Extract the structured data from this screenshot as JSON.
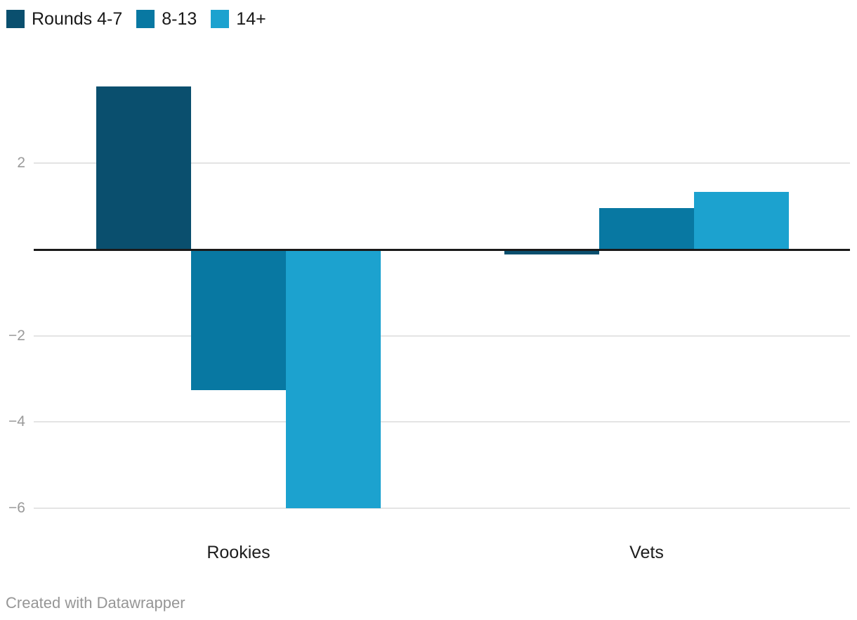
{
  "chart_data": {
    "type": "bar",
    "categories": [
      "Rookies",
      "Vets"
    ],
    "series": [
      {
        "name": "Rounds 4-7",
        "color": "#0a4f6e",
        "values": [
          3.78,
          -0.11
        ]
      },
      {
        "name": "8-13",
        "color": "#0878a2",
        "values": [
          -3.27,
          0.97
        ]
      },
      {
        "name": "14+",
        "color": "#1ca2cf",
        "values": [
          -6.0,
          1.34
        ]
      }
    ],
    "title": "",
    "xlabel": "",
    "ylabel": "",
    "ylim": [
      -6.6,
      4.0
    ],
    "yticks": [
      2,
      -2,
      -4,
      -6
    ],
    "baseline": 0,
    "grid": true,
    "legend_position": "top-left",
    "grouped": true
  },
  "legend": {
    "items": [
      {
        "label": "Rounds 4-7",
        "color": "#0a4f6e"
      },
      {
        "label": "8-13",
        "color": "#0878a2"
      },
      {
        "label": "14+",
        "color": "#1ca2cf"
      }
    ]
  },
  "colors": {
    "background": "#ffffff",
    "gridline": "#e4e4e4",
    "zero_line": "#1a1a1a",
    "tick_text": "#9a9a9a",
    "category_text": "#1d1d1d",
    "footer_text": "#969696"
  },
  "footer": {
    "credit": "Created with Datawrapper"
  }
}
